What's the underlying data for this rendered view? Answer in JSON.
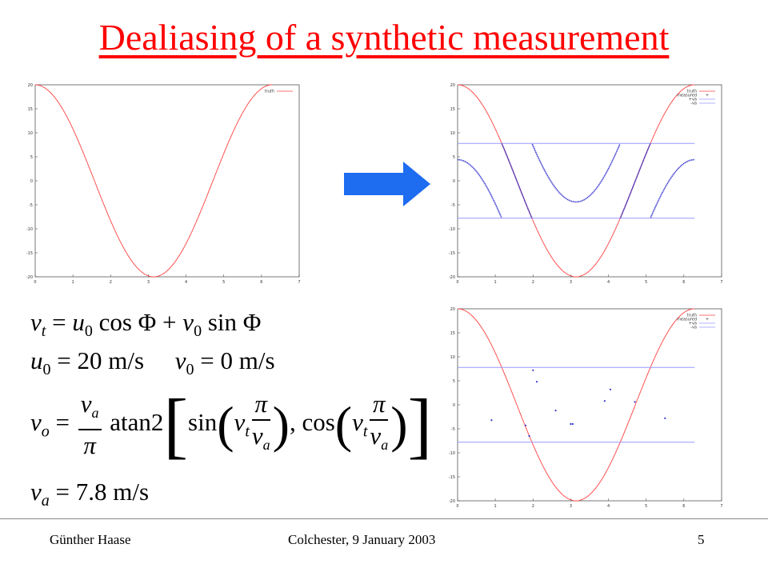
{
  "slide": {
    "title": "Dealiasing of a synthetic measurement",
    "footer_author": "Günther Haase",
    "footer_event": "Colchester, 9 January 2003",
    "footer_page": "5"
  },
  "colors": {
    "title": "#ff0000",
    "truth": "#ff4040",
    "measured": "#3333cc",
    "limits": "#9999ff",
    "arrow": "#1e6cf0"
  },
  "equations": {
    "eq1": "v_t = u_0 cos Φ + v_0 sin Φ",
    "eq2": "u_0 = 20 m/s   v_0 = 0 m/s",
    "eq3": "v_o = (v_a/π) atan2[ sin(v_t π/v_a), cos(v_t π/v_a) ]",
    "eq4": "v_a = 7.8 m/s",
    "unit_ms": "m/s",
    "val_20": "20",
    "val_0": "0",
    "val_78": "7.8",
    "atan2": "atan2",
    "sin": "sin",
    "cos": "cos"
  },
  "chart_data": [
    {
      "type": "line",
      "xlim": [
        0,
        7
      ],
      "ylim": [
        -20,
        20
      ],
      "xticks": [
        0,
        1,
        2,
        3,
        4,
        5,
        6,
        7
      ],
      "yticks": [
        20,
        15,
        10,
        5,
        0,
        -5,
        -10,
        -15,
        -20
      ],
      "legend": [
        "truth"
      ],
      "legend_position": "top-right",
      "series": [
        {
          "name": "truth",
          "function": "20*cos(x)",
          "x_range": [
            0,
            6.283
          ]
        }
      ]
    },
    {
      "type": "line",
      "xlim": [
        0,
        7
      ],
      "ylim": [
        -20,
        20
      ],
      "xticks": [
        0,
        1,
        2,
        3,
        4,
        5,
        6,
        7
      ],
      "yticks": [
        20,
        15,
        10,
        5,
        0,
        -5,
        -10,
        -15,
        -20
      ],
      "legend": [
        "truth",
        "measured",
        "+va",
        "-va"
      ],
      "legend_position": "top-right",
      "series": [
        {
          "name": "truth",
          "function": "20*cos(x)",
          "x_range": [
            0,
            6.283
          ]
        },
        {
          "name": "measured",
          "function": "aliased 20*cos(x) into [-7.8, 7.8]",
          "x_range": [
            0,
            6.283
          ]
        },
        {
          "name": "+va",
          "value": 7.8
        },
        {
          "name": "-va",
          "value": -7.8
        }
      ]
    },
    {
      "type": "scatter",
      "xlim": [
        0,
        7
      ],
      "ylim": [
        -20,
        20
      ],
      "xticks": [
        0,
        1,
        2,
        3,
        4,
        5,
        6,
        7
      ],
      "yticks": [
        20,
        15,
        10,
        5,
        0,
        -5,
        -10,
        -15,
        -20
      ],
      "legend": [
        "truth",
        "measured",
        "+va",
        "-va"
      ],
      "legend_position": "top-right",
      "series": [
        {
          "name": "truth",
          "function": "20*cos(x)",
          "x_range": [
            0,
            6.283
          ]
        },
        {
          "name": "measured",
          "x": [
            0.9,
            1.8,
            1.9,
            2.0,
            2.1,
            2.6,
            3.0,
            3.05,
            3.9,
            4.05,
            4.7,
            5.5
          ],
          "y": [
            -3.2,
            -4.3,
            -6.5,
            7.2,
            4.8,
            -1.2,
            -4.0,
            -4.0,
            0.8,
            3.2,
            0.6,
            -2.8
          ]
        },
        {
          "name": "+va",
          "value": 7.8
        },
        {
          "name": "-va",
          "value": -7.8
        }
      ]
    }
  ]
}
